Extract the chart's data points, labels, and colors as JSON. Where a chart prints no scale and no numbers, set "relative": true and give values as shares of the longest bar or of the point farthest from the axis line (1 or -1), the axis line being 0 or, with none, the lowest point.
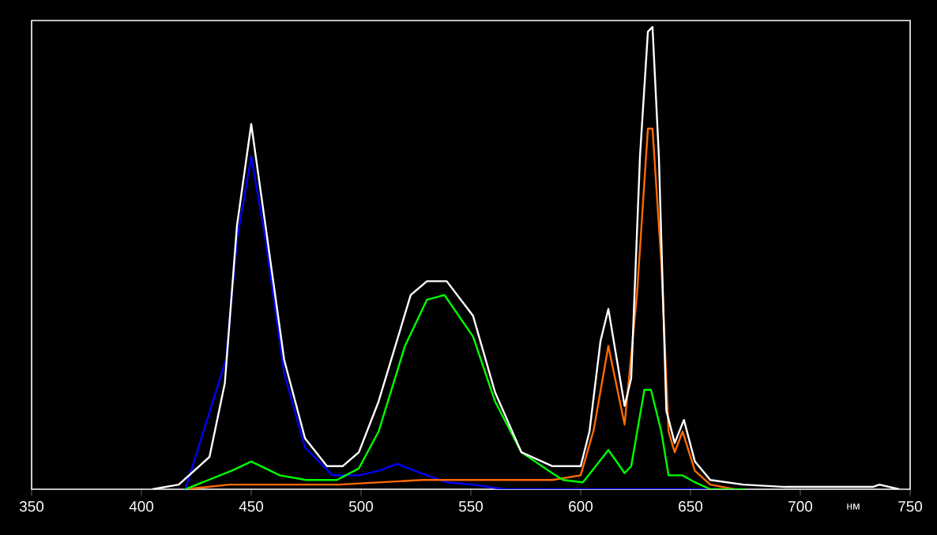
{
  "chart_data": {
    "type": "line",
    "relative": true,
    "xlabel": "нм",
    "xlim": [
      350,
      750
    ],
    "xticks": [
      350,
      400,
      450,
      500,
      550,
      600,
      650,
      700,
      750
    ],
    "series": [
      {
        "color": "#0000ff",
        "x": [
          420,
          438.5,
          443.5,
          450,
          456.5,
          465,
          474.5,
          487,
          499,
          508,
          516.5,
          527,
          539,
          551,
          565,
          600,
          650,
          670
        ],
        "values": [
          0,
          0.28,
          0.54,
          0.72,
          0.54,
          0.25,
          0.09,
          0.03,
          0.03,
          0.04,
          0.055,
          0.035,
          0.015,
          0.01,
          0,
          0,
          0,
          0
        ]
      },
      {
        "color": "#ff6a00",
        "x": [
          420,
          440,
          450,
          460,
          490,
          528,
          560,
          587,
          600,
          606,
          612.6,
          620,
          625.6,
          630.6,
          632.7,
          636.7,
          640,
          642.8,
          646.4,
          652,
          659,
          670
        ],
        "values": [
          0,
          0.01,
          0.01,
          0.01,
          0.01,
          0.02,
          0.02,
          0.02,
          0.03,
          0.13,
          0.31,
          0.14,
          0.42,
          0.78,
          0.78,
          0.49,
          0.125,
          0.08,
          0.125,
          0.04,
          0.01,
          0
        ]
      },
      {
        "color": "#00ff00",
        "x": [
          420,
          441,
          450,
          463,
          475,
          489,
          499,
          508,
          520,
          530,
          538,
          551,
          561,
          573,
          587,
          592,
          601,
          606,
          612.6,
          620,
          623,
          629,
          632,
          636.7,
          640,
          646.4,
          652,
          659,
          675
        ],
        "values": [
          0,
          0.04,
          0.06,
          0.03,
          0.02,
          0.02,
          0.045,
          0.125,
          0.31,
          0.41,
          0.42,
          0.33,
          0.19,
          0.08,
          0.035,
          0.02,
          0.015,
          0.045,
          0.085,
          0.035,
          0.05,
          0.215,
          0.215,
          0.125,
          0.03,
          0.03,
          0.015,
          0,
          0
        ]
      },
      {
        "color": "#ffffff",
        "x": [
          405,
          417,
          431,
          438,
          443.5,
          450,
          456.5,
          465,
          474.5,
          484.5,
          491.7,
          499,
          508,
          522.6,
          530,
          539,
          551,
          561,
          573,
          587,
          600,
          604,
          609,
          612.6,
          620,
          623,
          627,
          630.6,
          632.7,
          635.6,
          639,
          642.8,
          647,
          652,
          659,
          674,
          693,
          733,
          736,
          745
        ],
        "values": [
          0,
          0.01,
          0.07,
          0.23,
          0.57,
          0.79,
          0.57,
          0.28,
          0.11,
          0.05,
          0.05,
          0.08,
          0.19,
          0.42,
          0.45,
          0.45,
          0.375,
          0.21,
          0.08,
          0.05,
          0.05,
          0.125,
          0.32,
          0.39,
          0.18,
          0.24,
          0.72,
          0.99,
          1,
          0.72,
          0.17,
          0.1,
          0.15,
          0.06,
          0.02,
          0.01,
          0.005,
          0.005,
          0.01,
          0
        ]
      }
    ]
  }
}
